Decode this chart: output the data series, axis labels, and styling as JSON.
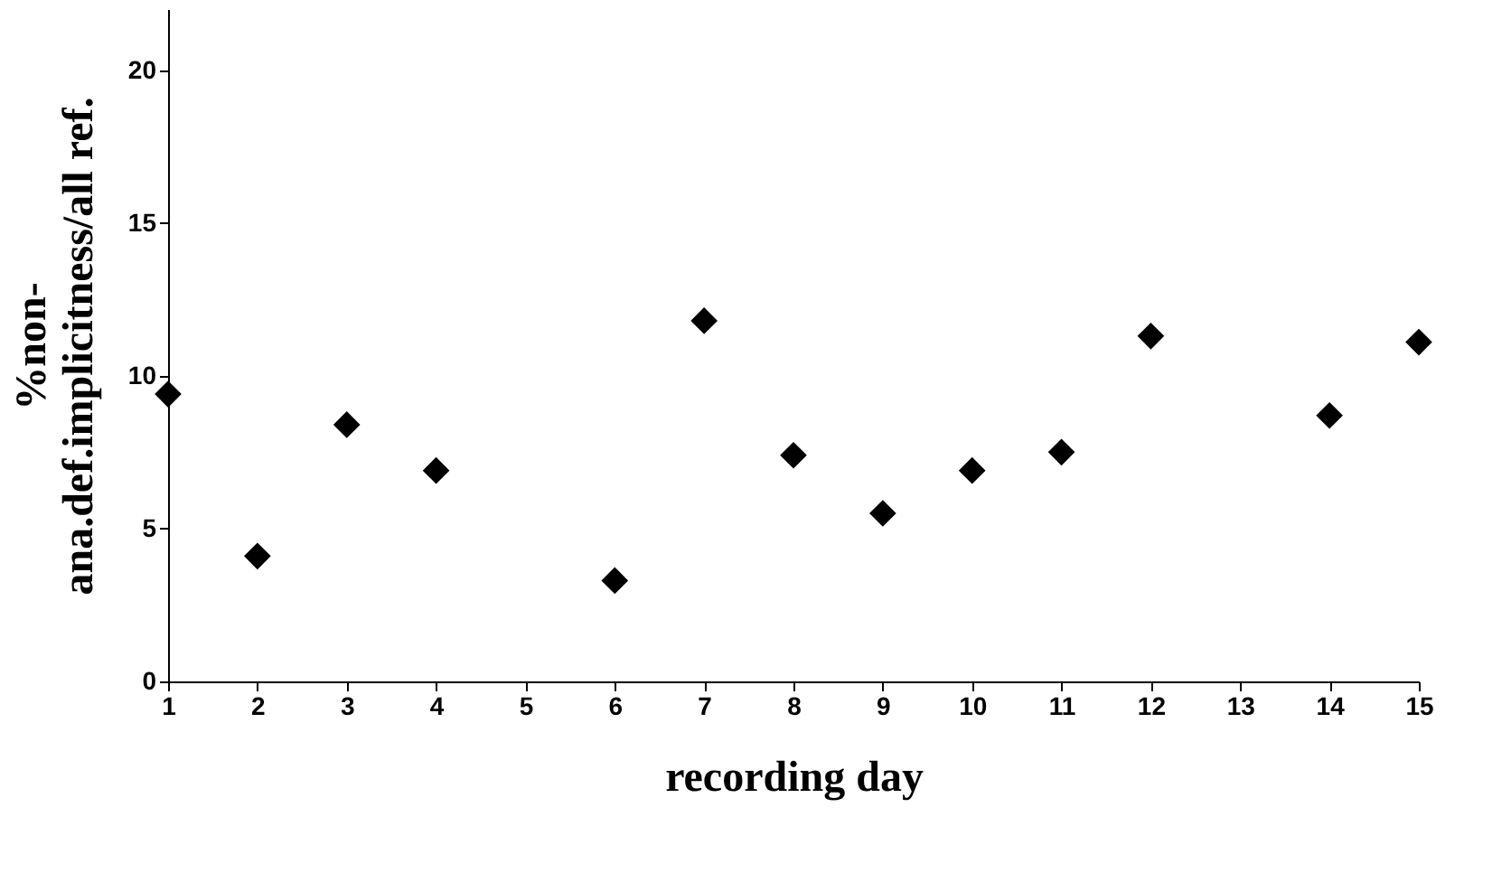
{
  "chart_data": {
    "type": "scatter",
    "xlabel": "recording day",
    "ylabel": "%non-\nana.def.implicitness/all ref.",
    "x": [
      1,
      2,
      3,
      4,
      6,
      7,
      8,
      9,
      10,
      11,
      12,
      14,
      15
    ],
    "values": [
      9.4,
      4.1,
      8.4,
      6.9,
      3.3,
      11.8,
      7.4,
      5.5,
      6.9,
      7.5,
      11.3,
      8.7,
      11.1
    ],
    "color": "#000000",
    "marker": "diamond",
    "xlim": [
      1,
      15
    ],
    "xticks": [
      1,
      2,
      3,
      4,
      5,
      6,
      7,
      8,
      9,
      10,
      11,
      12,
      13,
      14,
      15
    ],
    "ylim": [
      0,
      22
    ],
    "yticks": [
      0,
      5,
      10,
      15,
      20
    ],
    "grid": false
  }
}
